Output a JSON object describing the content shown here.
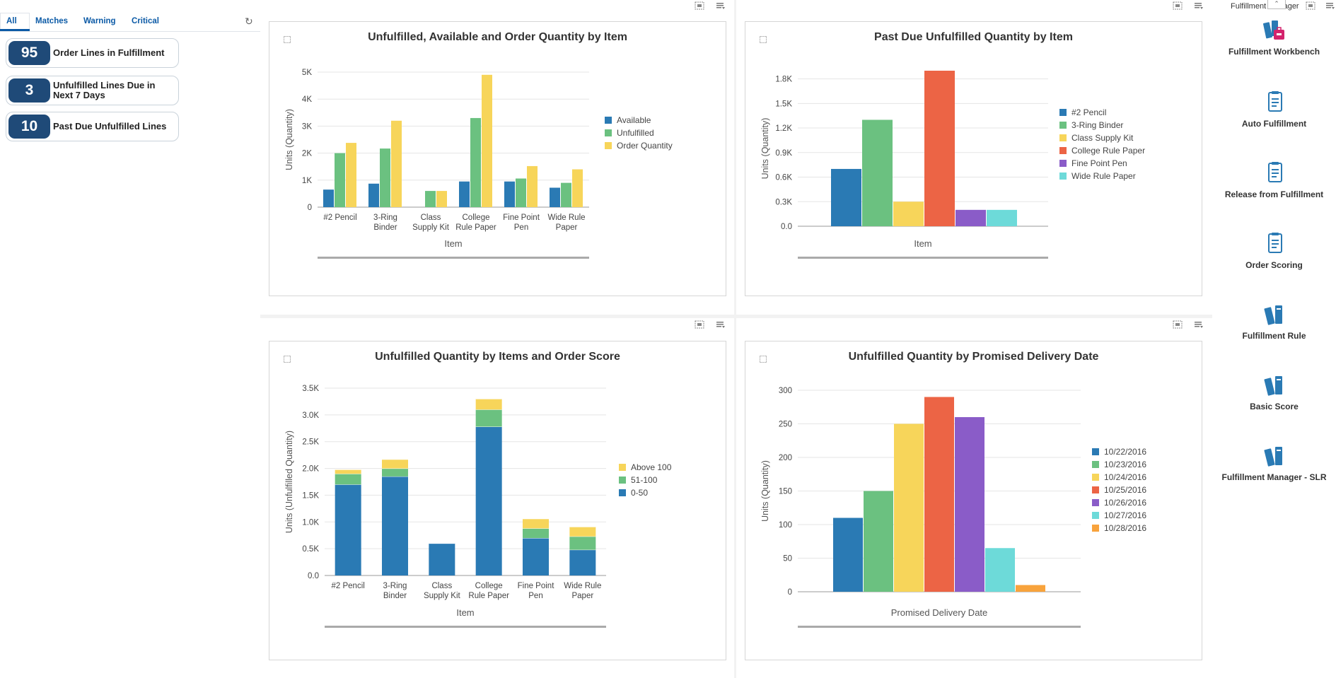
{
  "tabs": [
    "All",
    "Matches",
    "Warning",
    "Critical"
  ],
  "kpis": [
    {
      "value": "95",
      "label": "Order Lines in Fulfillment"
    },
    {
      "value": "3",
      "label": "Unfulfilled Lines Due in Next 7 Days"
    },
    {
      "value": "10",
      "label": "Past Due Unfulfilled Lines"
    }
  ],
  "right_panel": {
    "title": "Fulfillment Manager",
    "items": [
      {
        "label": "Fulfillment Workbench",
        "icon": "workbench-icon"
      },
      {
        "label": "Auto Fulfillment",
        "icon": "document-icon"
      },
      {
        "label": "Release from Fulfillment",
        "icon": "document-icon"
      },
      {
        "label": "Order Scoring",
        "icon": "document-icon"
      },
      {
        "label": "Fulfillment Rule",
        "icon": "books-icon"
      },
      {
        "label": "Basic Score",
        "icon": "books-icon"
      },
      {
        "label": "Fulfillment Manager - SLR",
        "icon": "books-icon"
      }
    ]
  },
  "colors": {
    "blue": "#2a7ab4",
    "green": "#6bc180",
    "yellow": "#f7d55a",
    "red": "#ec6445",
    "purple": "#8a5cc8",
    "cyan": "#6ddad9",
    "orange": "#f8a33c",
    "accent": "#0b5aa6",
    "kpi": "#1f4a78"
  },
  "chart_data": [
    {
      "type": "bar",
      "title": "Unfulfilled, Available and Order Quantity by Item",
      "xlabel": "Item",
      "ylabel": "Units (Quantity)",
      "categories": [
        "#2 Pencil",
        "3-Ring Binder",
        "Class Supply Kit",
        "College Rule Paper",
        "Fine Point Pen",
        "Wide Rule Paper"
      ],
      "series": [
        {
          "name": "Available",
          "values": [
            650,
            870,
            0,
            950,
            950,
            720
          ]
        },
        {
          "name": "Unfulfilled",
          "values": [
            2000,
            2170,
            600,
            3300,
            1060,
            900
          ]
        },
        {
          "name": "Order Quantity",
          "values": [
            2380,
            3200,
            600,
            4900,
            1520,
            1400
          ]
        }
      ],
      "ylim": [
        0,
        5000
      ],
      "yticks": [
        0,
        1000,
        2000,
        3000,
        4000,
        5000
      ],
      "yticklabels": [
        "0",
        "1K",
        "2K",
        "3K",
        "4K",
        "5K"
      ]
    },
    {
      "type": "bar",
      "title": "Past Due Unfulfilled Quantity by Item",
      "xlabel": "Item",
      "ylabel": "Units (Quantity)",
      "series": [
        {
          "name": "#2 Pencil",
          "value": 700
        },
        {
          "name": "3-Ring Binder",
          "value": 1300
        },
        {
          "name": "Class Supply Kit",
          "value": 300
        },
        {
          "name": "College Rule Paper",
          "value": 1900
        },
        {
          "name": "Fine Point Pen",
          "value": 200
        },
        {
          "name": "Wide Rule Paper",
          "value": 200
        }
      ],
      "ylim": [
        0,
        1900
      ],
      "yticks": [
        0,
        300,
        600,
        900,
        1200,
        1500,
        1800
      ],
      "yticklabels": [
        "0.0",
        "0.3K",
        "0.6K",
        "0.9K",
        "1.2K",
        "1.5K",
        "1.8K"
      ]
    },
    {
      "type": "bar",
      "stacked": true,
      "title": "Unfulfilled Quantity by Items and Order Score",
      "xlabel": "Item",
      "ylabel": "Units (Unfulfilled Quantity)",
      "categories": [
        "#2 Pencil",
        "3-Ring Binder",
        "Class Supply Kit",
        "College Rule Paper",
        "Fine Point Pen",
        "Wide Rule Paper"
      ],
      "series": [
        {
          "name": "0-50",
          "values": [
            1700,
            1850,
            600,
            2780,
            700,
            480
          ]
        },
        {
          "name": "51-100",
          "values": [
            200,
            150,
            0,
            320,
            180,
            250
          ]
        },
        {
          "name": "Above 100",
          "values": [
            80,
            170,
            0,
            200,
            180,
            180
          ]
        }
      ],
      "legend_order": [
        "Above 100",
        "51-100",
        "0-50"
      ],
      "ylim": [
        0,
        3500
      ],
      "yticks": [
        0,
        500,
        1000,
        1500,
        2000,
        2500,
        3000,
        3500
      ],
      "yticklabels": [
        "0.0",
        "0.5K",
        "1.0K",
        "1.5K",
        "2.0K",
        "2.5K",
        "3.0K",
        "3.5K"
      ]
    },
    {
      "type": "bar",
      "title": "Unfulfilled Quantity by Promised Delivery Date",
      "xlabel": "Promised Delivery Date",
      "ylabel": "Units (Quantity)",
      "series": [
        {
          "name": "10/22/2016",
          "value": 110
        },
        {
          "name": "10/23/2016",
          "value": 150
        },
        {
          "name": "10/24/2016",
          "value": 250
        },
        {
          "name": "10/25/2016",
          "value": 290
        },
        {
          "name": "10/26/2016",
          "value": 260
        },
        {
          "name": "10/27/2016",
          "value": 65
        },
        {
          "name": "10/28/2016",
          "value": 10
        }
      ],
      "ylim": [
        0,
        300
      ],
      "yticks": [
        0,
        50,
        100,
        150,
        200,
        250,
        300
      ],
      "yticklabels": [
        "0",
        "50",
        "100",
        "150",
        "200",
        "250",
        "300"
      ]
    }
  ]
}
